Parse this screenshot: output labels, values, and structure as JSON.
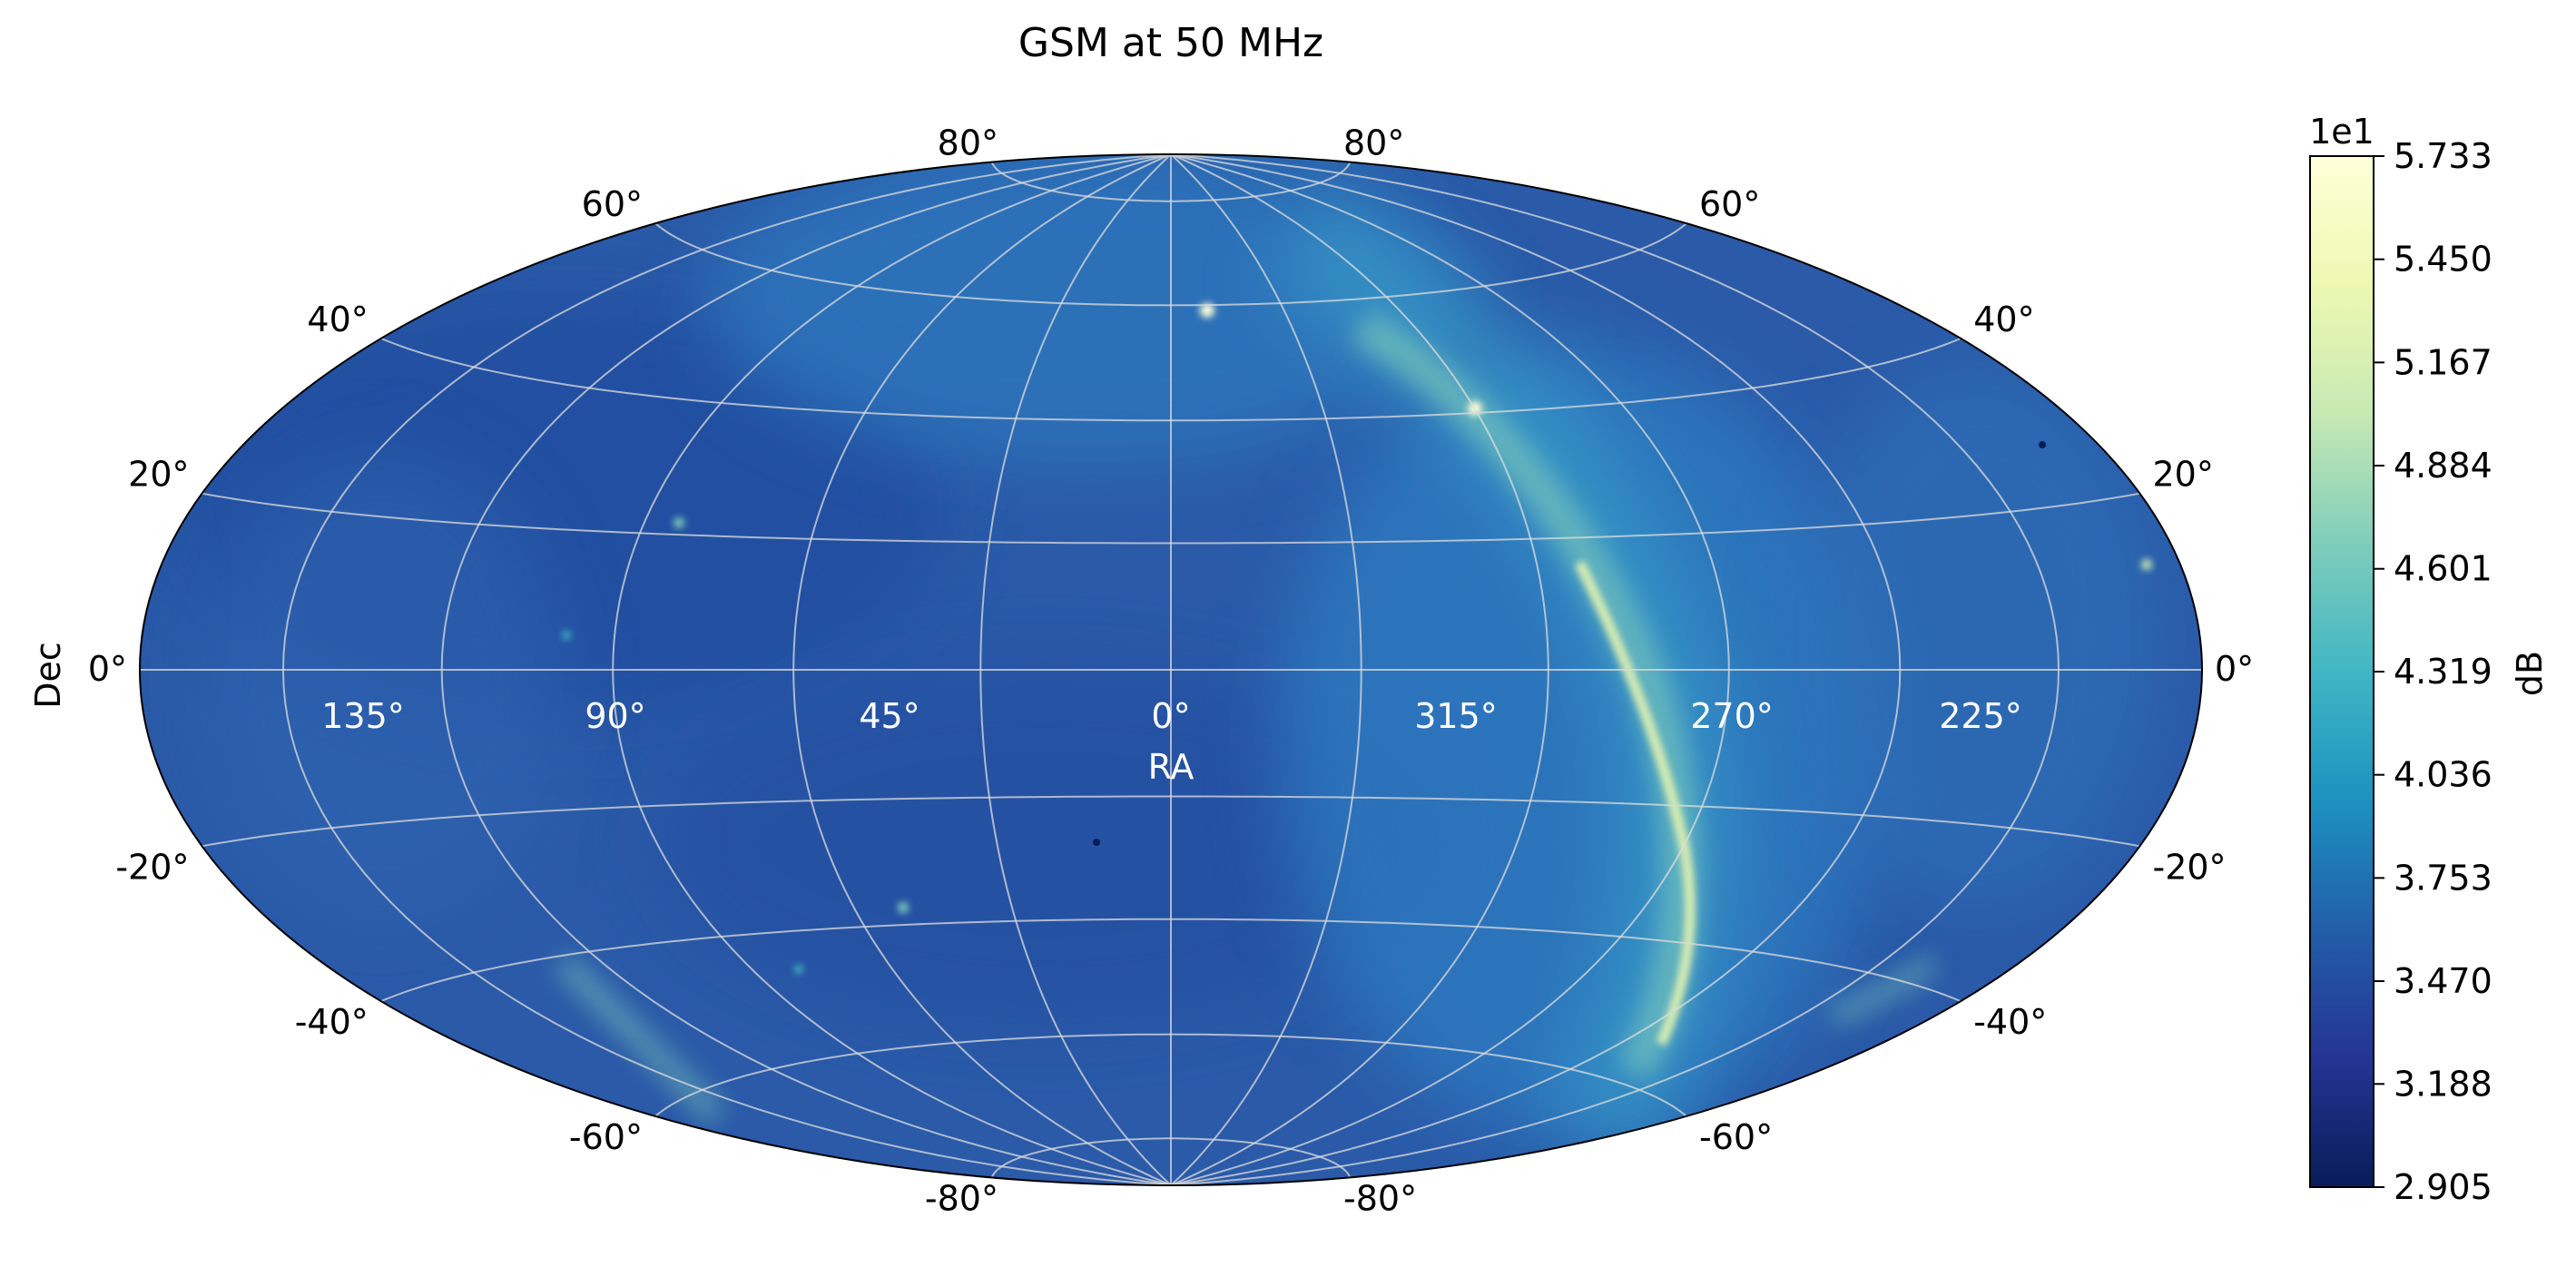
{
  "chart_data": {
    "type": "heatmap",
    "title": "GSM at 50 MHz",
    "projection": "hammer-aitoff",
    "xlabel": "RA",
    "ylabel": "Dec",
    "x_tick_labels": [
      "135°",
      "90°",
      "45°",
      "0°",
      "315°",
      "270°",
      "225°"
    ],
    "dec_ticks_left": [
      "80°",
      "60°",
      "40°",
      "20°",
      "0°",
      "-20°",
      "-40°",
      "-60°",
      "-80°"
    ],
    "dec_ticks_right": [
      "80°",
      "60°",
      "40°",
      "20°",
      "0°",
      "-20°",
      "-40°",
      "-60°",
      "-80°"
    ],
    "dec_values": [
      80,
      60,
      40,
      20,
      0,
      -20,
      -40,
      -60,
      -80
    ],
    "grid": true,
    "grid_color": "#dcdcdc",
    "colormap": "YlGnBu_r",
    "colorbar": {
      "label": "dB",
      "offset_text": "1e1",
      "min": 2.905,
      "max": 5.733,
      "tick_labels": [
        "5.733",
        "5.450",
        "5.167",
        "4.884",
        "4.601",
        "4.319",
        "4.036",
        "3.753",
        "3.470",
        "3.188",
        "2.905"
      ],
      "tick_values": [
        5.733,
        5.45,
        5.167,
        4.884,
        4.601,
        4.319,
        4.036,
        3.753,
        3.47,
        3.188,
        2.905
      ]
    },
    "features": [
      {
        "kind": "galactic-plane-band",
        "value": 4.6
      },
      {
        "kind": "bright-source",
        "value": 5.7
      },
      {
        "kind": "dark-spot",
        "value": 2.905
      }
    ]
  }
}
